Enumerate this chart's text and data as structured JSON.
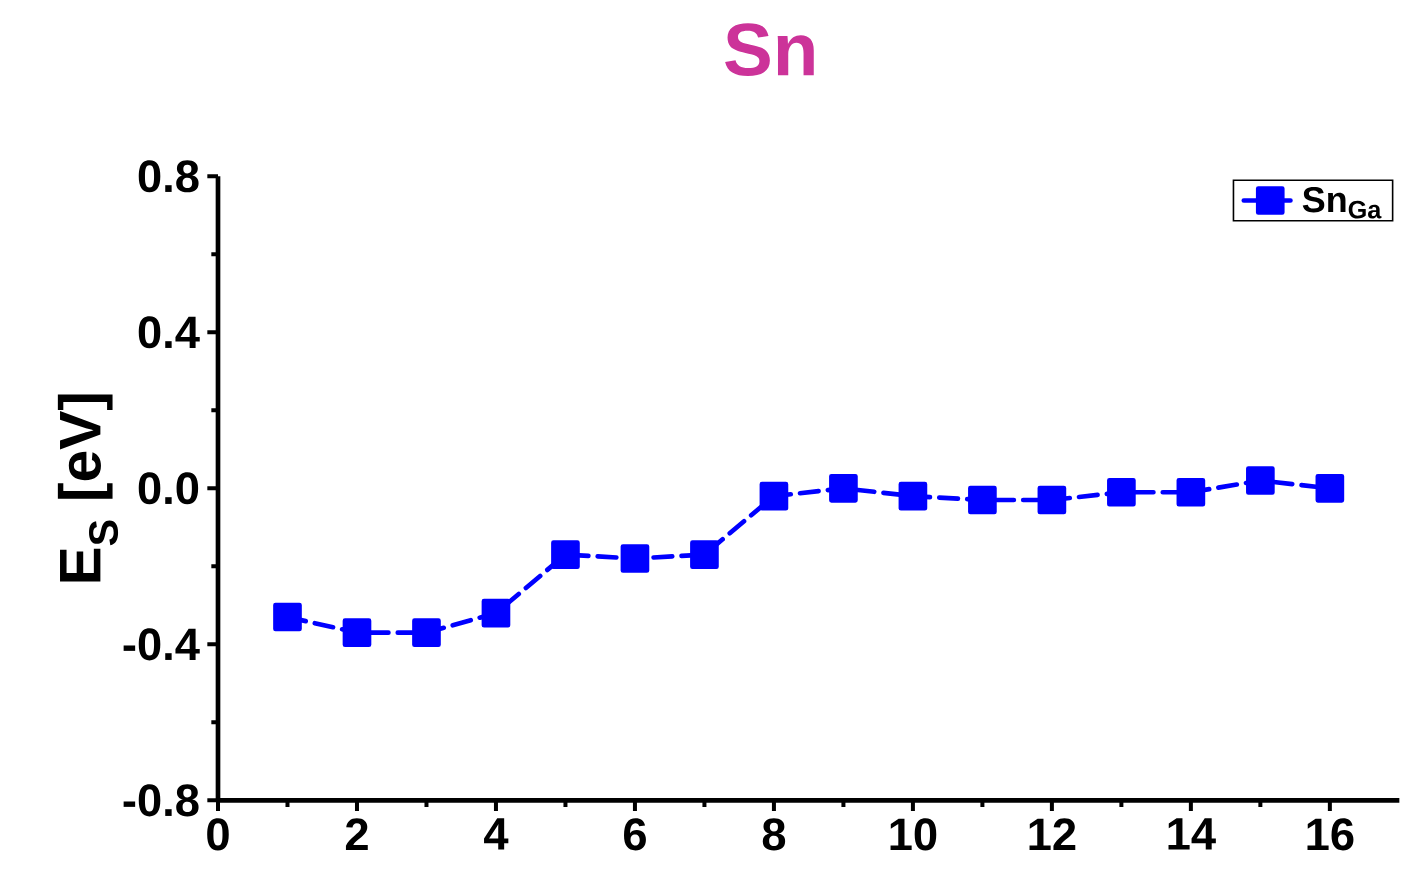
{
  "chart_data": {
    "type": "line",
    "title": "Sn",
    "ylabel": "E$_{S}$ [eV]",
    "x": [
      1,
      2,
      3,
      4,
      5,
      6,
      7,
      8,
      9,
      10,
      11,
      12,
      13,
      14,
      15,
      16
    ],
    "series": [
      {
        "name": "Sn$_{Ga}$",
        "color": "#0000ff",
        "values": [
          -0.33,
          -0.37,
          -0.37,
          -0.32,
          -0.17,
          -0.18,
          -0.17,
          -0.02,
          0.0,
          -0.02,
          -0.03,
          -0.03,
          -0.01,
          -0.01,
          0.02,
          0.0
        ]
      }
    ],
    "xlim": [
      0,
      17
    ],
    "ylim": [
      -0.8,
      0.8
    ],
    "xticks": [
      0,
      2,
      4,
      6,
      8,
      10,
      12,
      14,
      16
    ],
    "yticks": [
      -0.8,
      -0.4,
      {
        "value": 0,
        "label": "0.0"
      },
      0.4,
      0.8
    ],
    "legend": "top right",
    "marker": "square",
    "line_style": "dashed",
    "grid": false
  }
}
